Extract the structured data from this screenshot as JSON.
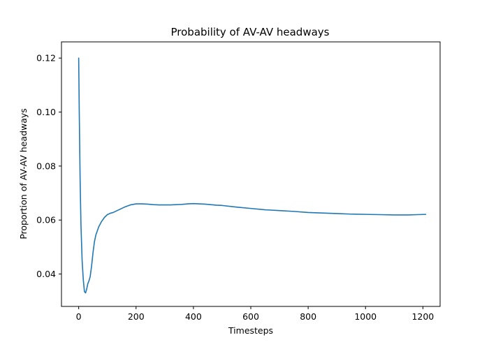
{
  "chart_data": {
    "type": "line",
    "title": "Probability of AV-AV headways",
    "xlabel": "Timesteps",
    "ylabel": "Proportion of AV-AV headways",
    "xlim": [
      -60,
      1260
    ],
    "ylim": [
      0.028,
      0.126
    ],
    "x_ticks": [
      0,
      200,
      400,
      600,
      800,
      1000,
      1200
    ],
    "x_tick_labels": [
      "0",
      "200",
      "400",
      "600",
      "800",
      "1000",
      "1200"
    ],
    "y_ticks": [
      0.04,
      0.06,
      0.08,
      0.1,
      0.12
    ],
    "y_tick_labels": [
      "0.04",
      "0.06",
      "0.08",
      "0.10",
      "0.12"
    ],
    "grid": false,
    "series": [
      {
        "color": "#1f77b4",
        "x": [
          0,
          2,
          5,
          8,
          12,
          16,
          20,
          24,
          28,
          32,
          36,
          40,
          45,
          50,
          55,
          60,
          70,
          80,
          90,
          100,
          110,
          120,
          140,
          160,
          180,
          200,
          220,
          240,
          260,
          280,
          300,
          320,
          340,
          360,
          380,
          400,
          420,
          440,
          460,
          480,
          500,
          550,
          600,
          650,
          700,
          750,
          800,
          850,
          900,
          950,
          1000,
          1050,
          1100,
          1150,
          1180,
          1210
        ],
        "y": [
          0.12,
          0.1,
          0.075,
          0.058,
          0.045,
          0.038,
          0.0335,
          0.033,
          0.0345,
          0.0365,
          0.0375,
          0.039,
          0.043,
          0.048,
          0.052,
          0.0545,
          0.0575,
          0.0595,
          0.061,
          0.062,
          0.0625,
          0.0628,
          0.0638,
          0.0648,
          0.0656,
          0.066,
          0.066,
          0.0659,
          0.0657,
          0.0656,
          0.0656,
          0.0656,
          0.0657,
          0.0658,
          0.066,
          0.0661,
          0.066,
          0.0659,
          0.0657,
          0.0655,
          0.0654,
          0.0648,
          0.0643,
          0.0638,
          0.0635,
          0.0632,
          0.0628,
          0.0626,
          0.0624,
          0.0622,
          0.0621,
          0.062,
          0.0619,
          0.0619,
          0.062,
          0.0621
        ]
      }
    ]
  }
}
